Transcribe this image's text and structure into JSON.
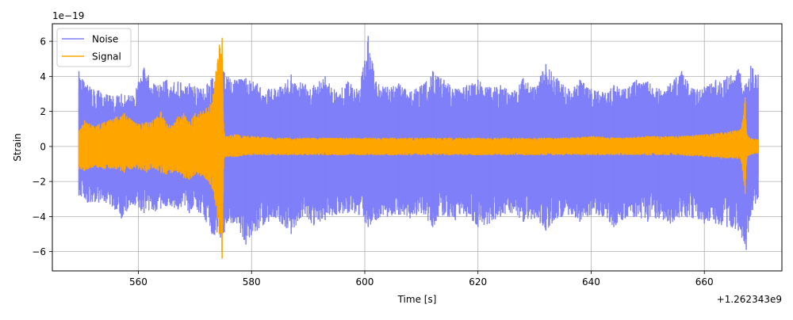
{
  "chart_data": {
    "type": "line",
    "title": "",
    "xlabel": "Time [s]",
    "ylabel": "Strain",
    "x_offset_label": "+1.262343e9",
    "y_scale_label": "1e−19",
    "xlim": [
      544.8,
      673.7
    ],
    "ylim": [
      -7.1,
      7.0
    ],
    "x_ticks": [
      560,
      580,
      600,
      620,
      640,
      660
    ],
    "x_tick_labels": [
      "560",
      "580",
      "600",
      "620",
      "640",
      "660"
    ],
    "y_ticks": [
      -6,
      -4,
      -2,
      0,
      2,
      4,
      6
    ],
    "y_tick_labels": [
      "−6",
      "−4",
      "−2",
      "0",
      "2",
      "4",
      "6"
    ],
    "grid": true,
    "legend_position": "top-left",
    "series": [
      {
        "name": "Noise",
        "color": "#7f7ff9",
        "envelope": {
          "x": [
            549.5,
            551,
            553,
            555,
            557,
            559,
            561,
            563,
            565,
            567,
            569,
            571,
            573,
            574.5,
            575.2,
            577,
            579,
            581,
            583,
            585,
            587,
            589,
            591,
            593,
            595,
            597,
            599,
            600.6,
            602,
            604,
            606,
            608,
            610,
            612,
            614,
            616,
            618,
            620,
            622,
            624,
            626,
            628,
            630,
            632,
            634,
            636,
            638,
            640,
            642,
            644,
            646,
            648,
            650,
            652,
            654,
            656,
            658,
            660,
            662,
            664,
            666,
            667.4,
            668.2,
            669.5
          ],
          "upper": [
            4.3,
            3.5,
            3.2,
            2.9,
            3.0,
            2.9,
            4.5,
            3.5,
            3.8,
            3.7,
            3.6,
            3.3,
            3.9,
            4.6,
            4.2,
            3.8,
            3.9,
            3.6,
            3.3,
            3.4,
            4.1,
            3.6,
            3.5,
            4.0,
            3.1,
            3.7,
            3.2,
            6.3,
            3.7,
            3.4,
            3.6,
            3.1,
            3.5,
            4.3,
            3.8,
            3.3,
            3.5,
            3.8,
            3.4,
            3.5,
            3.1,
            3.9,
            3.4,
            4.7,
            3.9,
            3.3,
            3.8,
            3.3,
            3.1,
            3.5,
            3.3,
            3.8,
            3.7,
            3.3,
            3.6,
            4.3,
            3.3,
            3.4,
            3.8,
            4.0,
            4.4,
            3.6,
            4.6,
            4.1
          ],
          "lower": [
            -2.8,
            -3.2,
            -3.2,
            -3.3,
            -4.1,
            -3.3,
            -3.8,
            -3.7,
            -3.4,
            -3.6,
            -3.8,
            -3.8,
            -5.0,
            -5.2,
            -4.9,
            -4.3,
            -5.6,
            -4.8,
            -4.3,
            -4.3,
            -5.0,
            -4.0,
            -4.5,
            -4.2,
            -3.9,
            -3.8,
            -3.9,
            -4.6,
            -4.2,
            -4.0,
            -3.9,
            -4.1,
            -3.8,
            -4.6,
            -3.9,
            -4.2,
            -4.0,
            -4.6,
            -4.4,
            -4.0,
            -3.8,
            -4.3,
            -4.1,
            -4.8,
            -4.1,
            -3.9,
            -4.3,
            -3.9,
            -4.0,
            -4.6,
            -4.1,
            -4.0,
            -4.3,
            -4.1,
            -4.4,
            -4.0,
            -4.1,
            -4.4,
            -4.4,
            -4.6,
            -4.8,
            -5.9,
            -3.9,
            -2.9
          ]
        }
      },
      {
        "name": "Signal",
        "color": "#ffa500",
        "envelope": {
          "x": [
            549.5,
            550.5,
            552,
            554,
            556,
            557.5,
            558.5,
            560,
            561.5,
            563,
            564,
            565,
            566,
            567,
            568,
            569,
            570,
            571,
            572,
            573,
            573.7,
            574.3,
            574.8,
            575.1,
            575.6,
            577,
            580,
            585,
            590,
            595,
            600,
            605,
            610,
            615,
            620,
            625,
            630,
            635,
            640,
            645,
            650,
            655,
            660,
            663,
            665,
            666.5,
            667.2,
            667.5,
            668,
            669.5
          ],
          "upper": [
            0.9,
            1.5,
            1.2,
            1.4,
            1.7,
            1.9,
            1.6,
            1.3,
            1.4,
            1.6,
            2.0,
            1.3,
            1.2,
            1.7,
            1.9,
            1.4,
            1.9,
            2.0,
            2.2,
            2.5,
            4.3,
            5.8,
            6.2,
            0.9,
            0.6,
            0.7,
            0.6,
            0.5,
            0.5,
            0.5,
            0.5,
            0.5,
            0.5,
            0.5,
            0.5,
            0.5,
            0.5,
            0.5,
            0.6,
            0.5,
            0.6,
            0.6,
            0.7,
            0.8,
            0.9,
            1.0,
            2.8,
            0.7,
            0.5,
            0.4
          ],
          "lower": [
            -1.3,
            -1.4,
            -1.2,
            -1.3,
            -1.3,
            -1.5,
            -1.3,
            -1.3,
            -1.5,
            -1.3,
            -1.5,
            -1.6,
            -1.5,
            -1.5,
            -1.8,
            -1.9,
            -1.6,
            -1.7,
            -1.9,
            -2.4,
            -3.4,
            -5.0,
            -6.4,
            -0.7,
            -0.6,
            -0.6,
            -0.5,
            -0.5,
            -0.5,
            -0.5,
            -0.5,
            -0.5,
            -0.5,
            -0.5,
            -0.5,
            -0.5,
            -0.5,
            -0.5,
            -0.5,
            -0.5,
            -0.5,
            -0.5,
            -0.6,
            -0.7,
            -0.7,
            -0.8,
            -2.7,
            -0.7,
            -0.5,
            -0.4
          ]
        }
      }
    ]
  }
}
